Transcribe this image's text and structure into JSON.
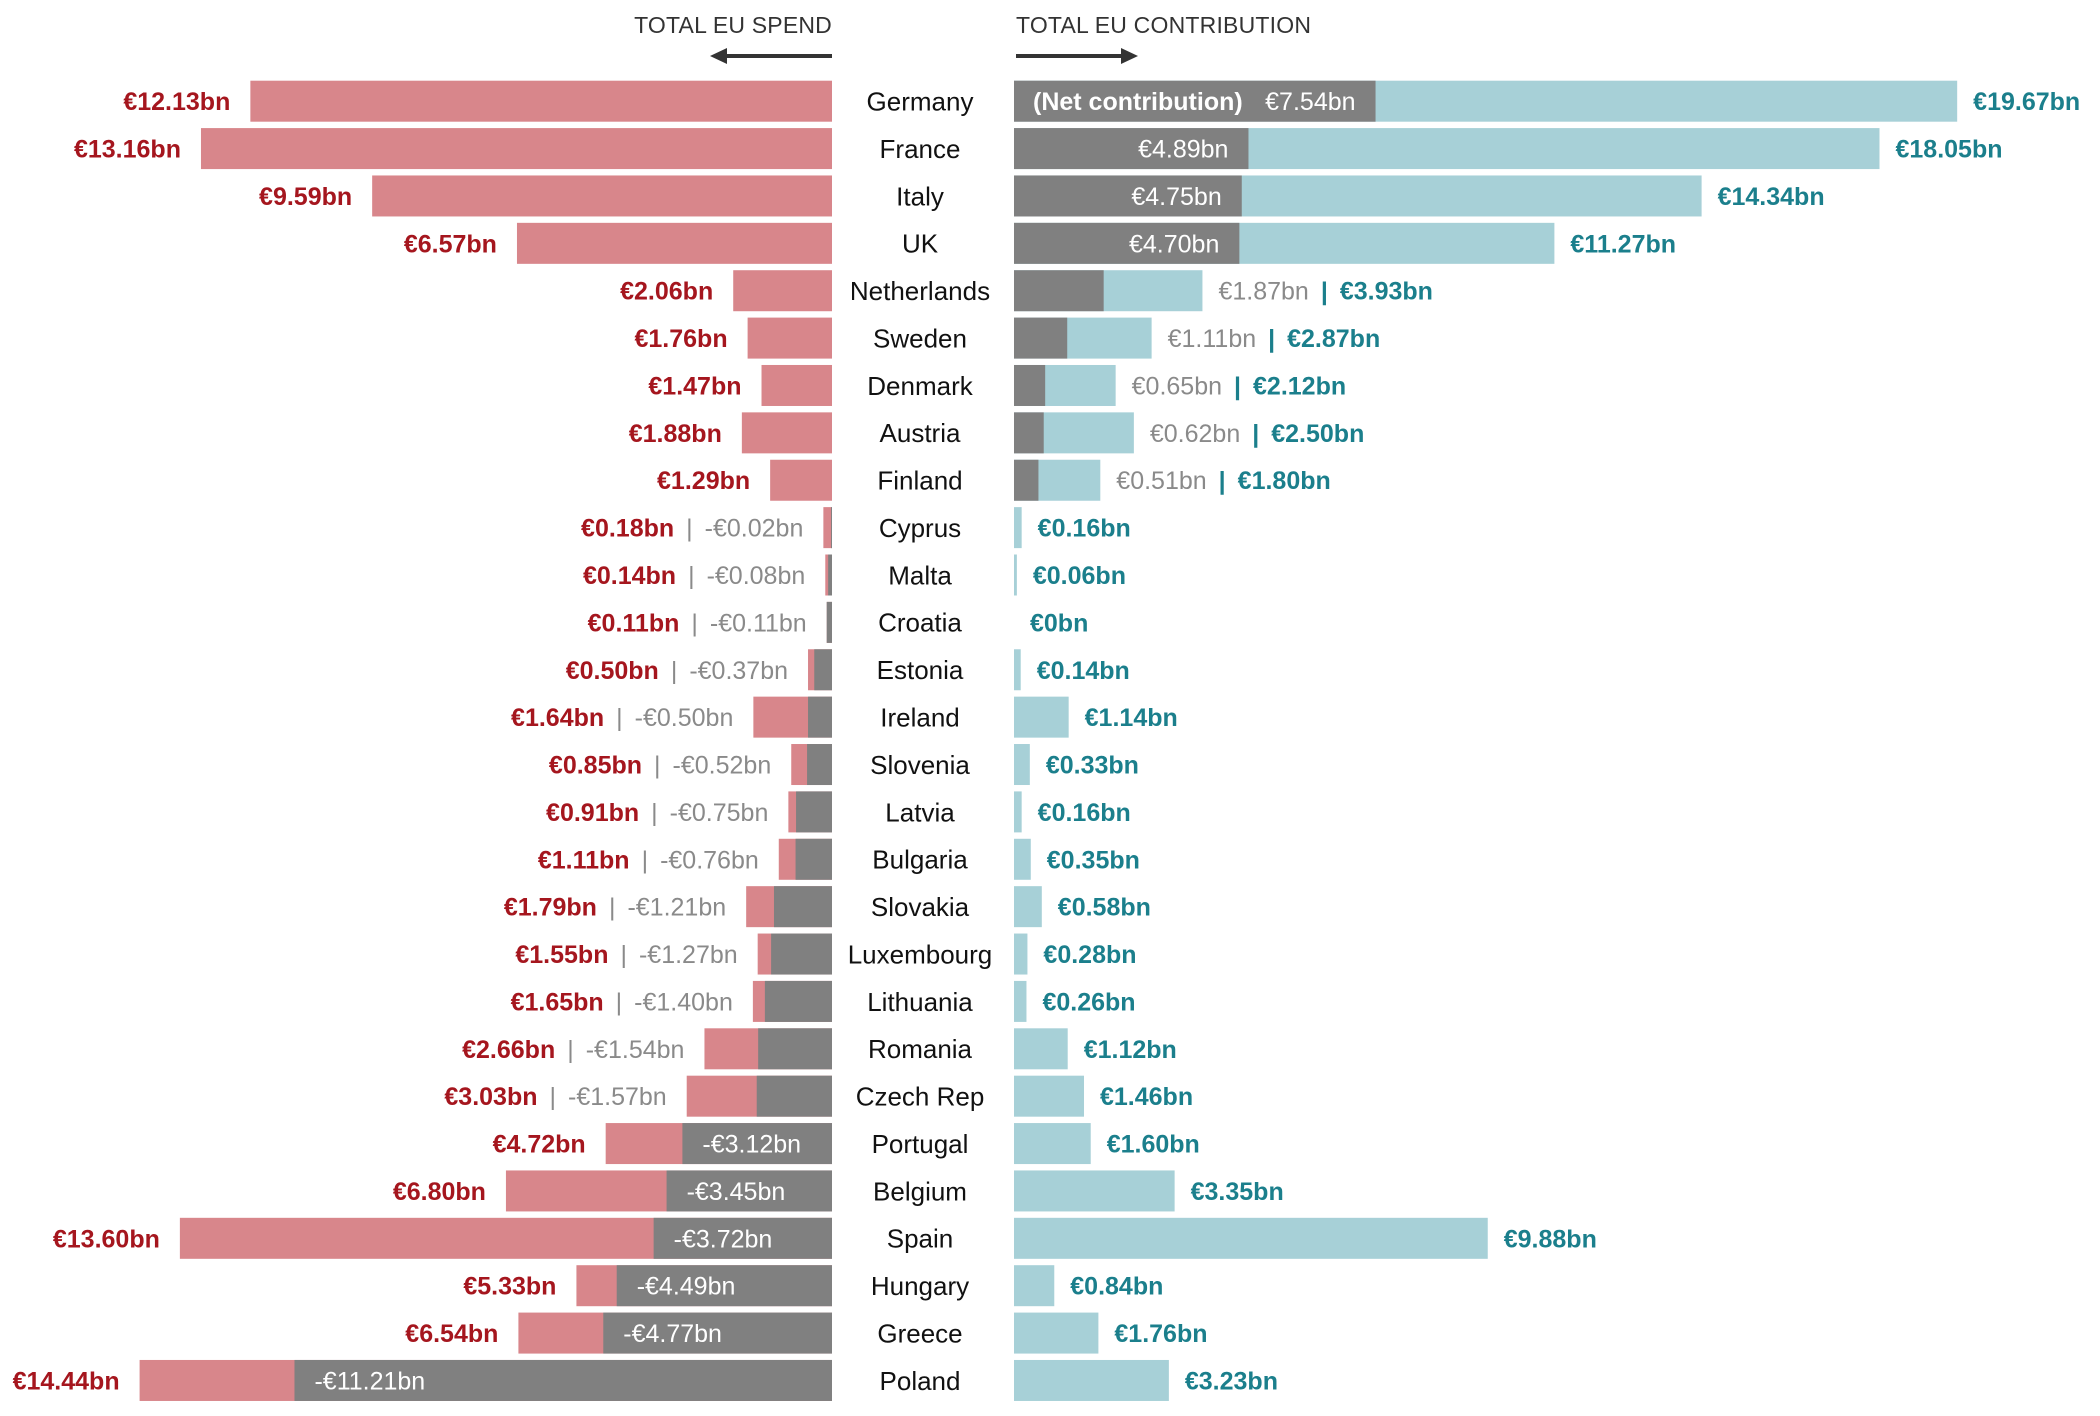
{
  "chart_data": {
    "type": "bar",
    "left_header": "TOTAL EU SPEND",
    "right_header": "TOTAL EU CONTRIBUTION",
    "separator": "|",
    "colors": {
      "spend": "#d8868b",
      "net": "#808080",
      "contribution": "#a7d0d7",
      "spend_text": "#a5161e",
      "contribution_text": "#1b7f8c",
      "net_text": "#8a8a8a",
      "on_bar_text": "#ffffff",
      "country_text": "#111111"
    },
    "rows": [
      {
        "country": "Germany",
        "spend": 12.13,
        "spend_label": "€12.13bn",
        "net": 7.54,
        "net_label": "€7.54bn",
        "contribution": 19.67,
        "contribution_label": "€19.67bn",
        "note": "(Net contribution)"
      },
      {
        "country": "France",
        "spend": 13.16,
        "spend_label": "€13.16bn",
        "net": 4.89,
        "net_label": "€4.89bn",
        "contribution": 18.05,
        "contribution_label": "€18.05bn"
      },
      {
        "country": "Italy",
        "spend": 9.59,
        "spend_label": "€9.59bn",
        "net": 4.75,
        "net_label": "€4.75bn",
        "contribution": 14.34,
        "contribution_label": "€14.34bn"
      },
      {
        "country": "UK",
        "spend": 6.57,
        "spend_label": "€6.57bn",
        "net": 4.7,
        "net_label": "€4.70bn",
        "contribution": 11.27,
        "contribution_label": "€11.27bn"
      },
      {
        "country": "Netherlands",
        "spend": 2.06,
        "spend_label": "€2.06bn",
        "net": 1.87,
        "net_label": "€1.87bn",
        "contribution": 3.93,
        "contribution_label": "€3.93bn"
      },
      {
        "country": "Sweden",
        "spend": 1.76,
        "spend_label": "€1.76bn",
        "net": 1.11,
        "net_label": "€1.11bn",
        "contribution": 2.87,
        "contribution_label": "€2.87bn"
      },
      {
        "country": "Denmark",
        "spend": 1.47,
        "spend_label": "€1.47bn",
        "net": 0.65,
        "net_label": "€0.65bn",
        "contribution": 2.12,
        "contribution_label": "€2.12bn"
      },
      {
        "country": "Austria",
        "spend": 1.88,
        "spend_label": "€1.88bn",
        "net": 0.62,
        "net_label": "€0.62bn",
        "contribution": 2.5,
        "contribution_label": "€2.50bn"
      },
      {
        "country": "Finland",
        "spend": 1.29,
        "spend_label": "€1.29bn",
        "net": 0.51,
        "net_label": "€0.51bn",
        "contribution": 1.8,
        "contribution_label": "€1.80bn"
      },
      {
        "country": "Cyprus",
        "spend": 0.18,
        "spend_label": "€0.18bn",
        "net": -0.02,
        "net_label": "-€0.02bn",
        "contribution": 0.16,
        "contribution_label": "€0.16bn"
      },
      {
        "country": "Malta",
        "spend": 0.14,
        "spend_label": "€0.14bn",
        "net": -0.08,
        "net_label": "-€0.08bn",
        "contribution": 0.06,
        "contribution_label": "€0.06bn"
      },
      {
        "country": "Croatia",
        "spend": 0.11,
        "spend_label": "€0.11bn",
        "net": -0.11,
        "net_label": "-€0.11bn",
        "contribution": 0,
        "contribution_label": "€0bn"
      },
      {
        "country": "Estonia",
        "spend": 0.5,
        "spend_label": "€0.50bn",
        "net": -0.37,
        "net_label": "-€0.37bn",
        "contribution": 0.14,
        "contribution_label": "€0.14bn"
      },
      {
        "country": "Ireland",
        "spend": 1.64,
        "spend_label": "€1.64bn",
        "net": -0.5,
        "net_label": "-€0.50bn",
        "contribution": 1.14,
        "contribution_label": "€1.14bn"
      },
      {
        "country": "Slovenia",
        "spend": 0.85,
        "spend_label": "€0.85bn",
        "net": -0.52,
        "net_label": "-€0.52bn",
        "contribution": 0.33,
        "contribution_label": "€0.33bn"
      },
      {
        "country": "Latvia",
        "spend": 0.91,
        "spend_label": "€0.91bn",
        "net": -0.75,
        "net_label": "-€0.75bn",
        "contribution": 0.16,
        "contribution_label": "€0.16bn"
      },
      {
        "country": "Bulgaria",
        "spend": 1.11,
        "spend_label": "€1.11bn",
        "net": -0.76,
        "net_label": "-€0.76bn",
        "contribution": 0.35,
        "contribution_label": "€0.35bn"
      },
      {
        "country": "Slovakia",
        "spend": 1.79,
        "spend_label": "€1.79bn",
        "net": -1.21,
        "net_label": "-€1.21bn",
        "contribution": 0.58,
        "contribution_label": "€0.58bn"
      },
      {
        "country": "Luxembourg",
        "spend": 1.55,
        "spend_label": "€1.55bn",
        "net": -1.27,
        "net_label": "-€1.27bn",
        "contribution": 0.28,
        "contribution_label": "€0.28bn"
      },
      {
        "country": "Lithuania",
        "spend": 1.65,
        "spend_label": "€1.65bn",
        "net": -1.4,
        "net_label": "-€1.40bn",
        "contribution": 0.26,
        "contribution_label": "€0.26bn"
      },
      {
        "country": "Romania",
        "spend": 2.66,
        "spend_label": "€2.66bn",
        "net": -1.54,
        "net_label": "-€1.54bn",
        "contribution": 1.12,
        "contribution_label": "€1.12bn"
      },
      {
        "country": "Czech Rep",
        "spend": 3.03,
        "spend_label": "€3.03bn",
        "net": -1.57,
        "net_label": "-€1.57bn",
        "contribution": 1.46,
        "contribution_label": "€1.46bn"
      },
      {
        "country": "Portugal",
        "spend": 4.72,
        "spend_label": "€4.72bn",
        "net": -3.12,
        "net_label": "-€3.12bn",
        "contribution": 1.6,
        "contribution_label": "€1.60bn"
      },
      {
        "country": "Belgium",
        "spend": 6.8,
        "spend_label": "€6.80bn",
        "net": -3.45,
        "net_label": "-€3.45bn",
        "contribution": 3.35,
        "contribution_label": "€3.35bn"
      },
      {
        "country": "Spain",
        "spend": 13.6,
        "spend_label": "€13.60bn",
        "net": -3.72,
        "net_label": "-€3.72bn",
        "contribution": 9.88,
        "contribution_label": "€9.88bn"
      },
      {
        "country": "Hungary",
        "spend": 5.33,
        "spend_label": "€5.33bn",
        "net": -4.49,
        "net_label": "-€4.49bn",
        "contribution": 0.84,
        "contribution_label": "€0.84bn"
      },
      {
        "country": "Greece",
        "spend": 6.54,
        "spend_label": "€6.54bn",
        "net": -4.77,
        "net_label": "-€4.77bn",
        "contribution": 1.76,
        "contribution_label": "€1.76bn"
      },
      {
        "country": "Poland",
        "spend": 14.44,
        "spend_label": "€14.44bn",
        "net": -11.21,
        "net_label": "-€11.21bn",
        "contribution": 3.23,
        "contribution_label": "€3.23bn"
      }
    ]
  }
}
